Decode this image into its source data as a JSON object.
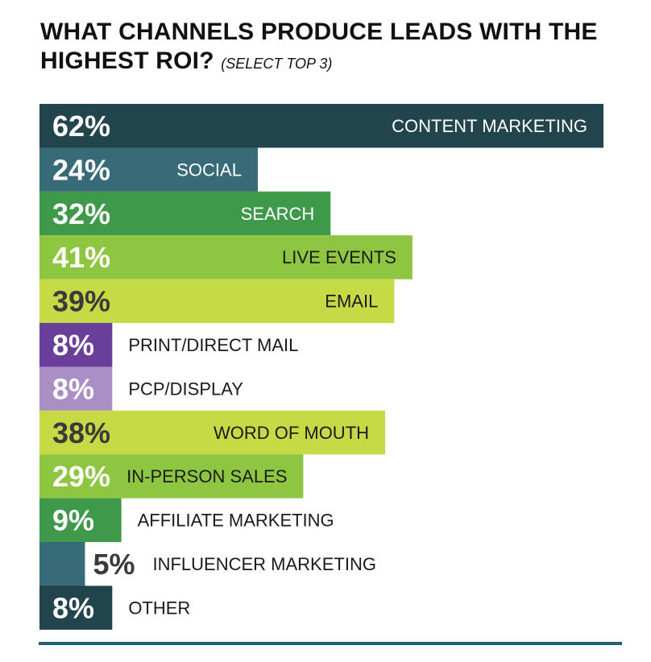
{
  "chart_data": {
    "type": "bar",
    "orientation": "horizontal",
    "title": "WHAT CHANNELS PRODUCE LEADS WITH THE HIGHEST ROI?",
    "subtitle": "(SELECT TOP 3)",
    "unit": "%",
    "xlim": [
      0,
      62
    ],
    "categories": [
      "CONTENT MARKETING",
      "SOCIAL",
      "SEARCH",
      "LIVE EVENTS",
      "EMAIL",
      "PRINT/DIRECT MAIL",
      "PCP/DISPLAY",
      "WORD OF MOUTH",
      "IN-PERSON SALES",
      "AFFILIATE MARKETING",
      "INFLUENCER MARKETING",
      "OTHER"
    ],
    "values": [
      62,
      24,
      32,
      41,
      39,
      8,
      8,
      38,
      29,
      9,
      5,
      8
    ],
    "value_labels": [
      "62%",
      "24%",
      "32%",
      "41%",
      "39%",
      "8%",
      "8%",
      "38%",
      "29%",
      "9%",
      "5%",
      "8%"
    ],
    "colors": [
      "#22444d",
      "#376b78",
      "#3e9a4a",
      "#8ec642",
      "#c6da45",
      "#6a3f9b",
      "#a98fc5",
      "#c6da45",
      "#8ec642",
      "#3e9a4a",
      "#376b78",
      "#22444d"
    ],
    "label_colors": [
      "#ffffff",
      "#ffffff",
      "#ffffff",
      "#1a1a1a",
      "#1a1a1a",
      "#1a1a1a",
      "#1a1a1a",
      "#1a1a1a",
      "#1a1a1a",
      "#1a1a1a",
      "#1a1a1a",
      "#1a1a1a"
    ],
    "value_colors": [
      "#ffffff",
      "#ffffff",
      "#ffffff",
      "#ffffff",
      "#3a3a3a",
      "#ffffff",
      "#ffffff",
      "#3a3a3a",
      "#ffffff",
      "#ffffff",
      "#3a3a3a",
      "#ffffff"
    ],
    "label_inside": [
      true,
      true,
      true,
      true,
      true,
      false,
      false,
      true,
      true,
      false,
      false,
      false
    ],
    "value_outside": [
      false,
      false,
      false,
      false,
      false,
      false,
      false,
      false,
      false,
      false,
      true,
      false
    ]
  }
}
